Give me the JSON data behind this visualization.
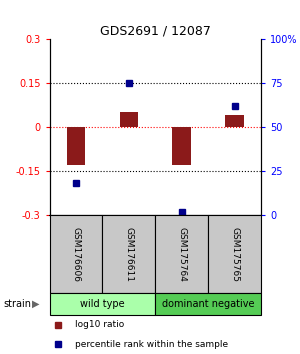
{
  "title": "GDS2691 / 12087",
  "samples": [
    "GSM176606",
    "GSM176611",
    "GSM175764",
    "GSM175765"
  ],
  "log10_ratio": [
    -0.13,
    0.05,
    -0.13,
    0.04
  ],
  "percentile_rank": [
    18,
    75,
    2,
    62
  ],
  "ylim_left": [
    -0.3,
    0.3
  ],
  "ylim_right": [
    0,
    100
  ],
  "yticks_left": [
    -0.3,
    -0.15,
    0,
    0.15,
    0.3
  ],
  "yticks_right": [
    0,
    25,
    50,
    75,
    100
  ],
  "ytick_labels_left": [
    "-0.3",
    "-0.15",
    "0",
    "0.15",
    "0.3"
  ],
  "ytick_labels_right": [
    "0",
    "25",
    "50",
    "75",
    "100%"
  ],
  "hlines": [
    -0.15,
    0,
    0.15
  ],
  "hline_colors": [
    "black",
    "red",
    "black"
  ],
  "hline_styles": [
    "dotted",
    "dotted",
    "dotted"
  ],
  "bar_color": "#8B1A1A",
  "dot_color": "#00008B",
  "bar_width": 0.35,
  "groups": [
    {
      "label": "wild type",
      "samples": [
        0,
        1
      ],
      "color": "#aaffaa"
    },
    {
      "label": "dominant negative",
      "samples": [
        2,
        3
      ],
      "color": "#55cc55"
    }
  ],
  "group_row_color": "#c8c8c8",
  "legend_bar_label": "log10 ratio",
  "legend_dot_label": "percentile rank within the sample",
  "strain_label": "strain",
  "bg_color": "#ffffff"
}
